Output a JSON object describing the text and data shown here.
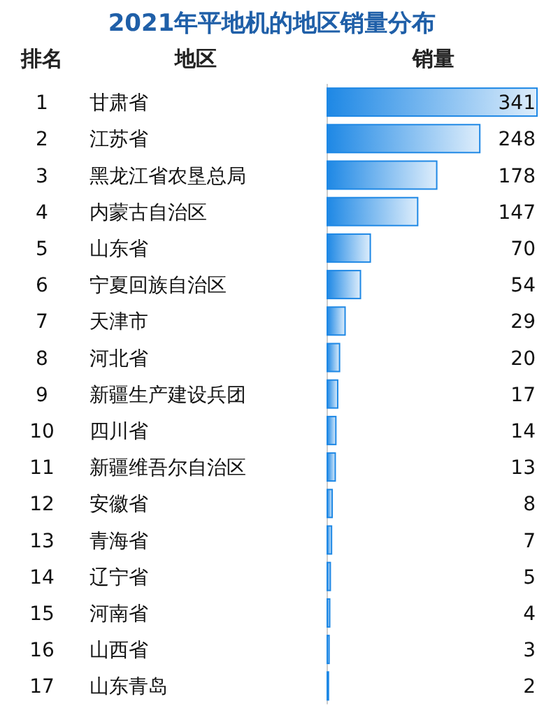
{
  "chart_data": {
    "type": "bar",
    "orientation": "horizontal",
    "title": "2021年平地机的地区销量分布",
    "ylabel": "地区",
    "xlabel": "销量",
    "categories": [
      "甘肃省",
      "江苏省",
      "黑龙江省农垦总局",
      "内蒙古自治区",
      "山东省",
      "宁夏回族自治区",
      "天津市",
      "河北省",
      "新疆生产建设兵团",
      "四川省",
      "新疆维吾尔自治区",
      "安徽省",
      "青海省",
      "辽宁省",
      "河南省",
      "山西省",
      "山东青岛"
    ],
    "values": [
      341,
      248,
      178,
      147,
      70,
      54,
      29,
      20,
      17,
      14,
      13,
      8,
      7,
      5,
      4,
      3,
      2
    ],
    "color": "#1e88e5",
    "data_labels": true,
    "annotations": [
      "排名",
      "1",
      "2",
      "3",
      "4",
      "5",
      "6",
      "7",
      "8",
      "9",
      "10",
      "11",
      "12",
      "13",
      "14",
      "15",
      "16",
      "17"
    ]
  }
}
